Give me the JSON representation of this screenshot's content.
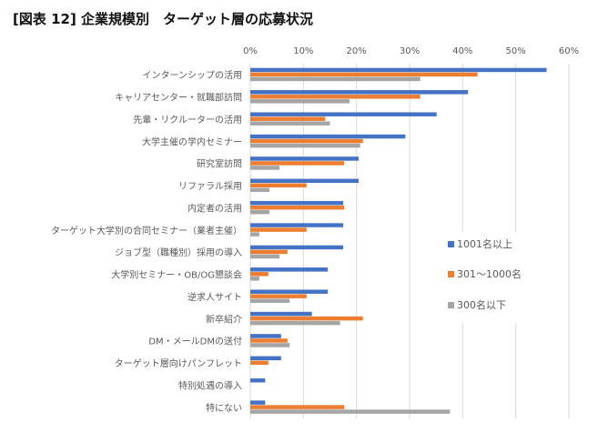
{
  "title": "[図表 12]  企業規模別　ターゲット層の応募状況",
  "chart_data": {
    "type": "bar",
    "orientation": "horizontal",
    "title": "[図表 12]  企業規模別　ターゲット層の応募状況",
    "xlim": [
      0,
      60
    ],
    "x_ticks": [
      "0%",
      "10%",
      "20%",
      "30%",
      "40%",
      "50%",
      "60%"
    ],
    "x_axis_position": "top",
    "grid": true,
    "legend_placement": "right",
    "categories": [
      "インターンシップの活用",
      "キャリアセンター・就職部訪問",
      "先輩・リクルーターの活用",
      "大学主催の学内セミナー",
      "研究室訪問",
      "リファラル採用",
      "内定者の活用",
      "ターゲット大学別の合同セミナー（業者主催）",
      "ジョブ型（職種別）採用の導入",
      "大学別セミナー・OB/OG懇談会",
      "逆求人サイト",
      "新卒紹介",
      "DM・メールDMの送付",
      "ターゲット層向けパンフレット",
      "特別処遇の導入",
      "特にない"
    ],
    "series": [
      {
        "name": "1001名以上",
        "color": "#4472C4",
        "values": [
          55.8,
          41.0,
          35.1,
          29.2,
          20.4,
          20.4,
          17.5,
          17.5,
          17.5,
          14.6,
          14.6,
          11.6,
          5.8,
          5.8,
          2.8,
          2.8
        ]
      },
      {
        "name": "301～1000名",
        "color": "#ED7D31",
        "values": [
          42.8,
          32.0,
          14.1,
          21.2,
          17.7,
          10.6,
          17.7,
          10.6,
          7.0,
          3.4,
          10.6,
          21.2,
          7.0,
          3.4,
          0,
          17.7
        ]
      },
      {
        "name": "300名以下",
        "color": "#A5A5A5",
        "values": [
          32.0,
          18.7,
          15.0,
          20.7,
          5.5,
          3.6,
          3.6,
          1.7,
          5.5,
          1.7,
          7.4,
          16.9,
          7.4,
          0,
          0,
          37.6
        ]
      }
    ]
  }
}
